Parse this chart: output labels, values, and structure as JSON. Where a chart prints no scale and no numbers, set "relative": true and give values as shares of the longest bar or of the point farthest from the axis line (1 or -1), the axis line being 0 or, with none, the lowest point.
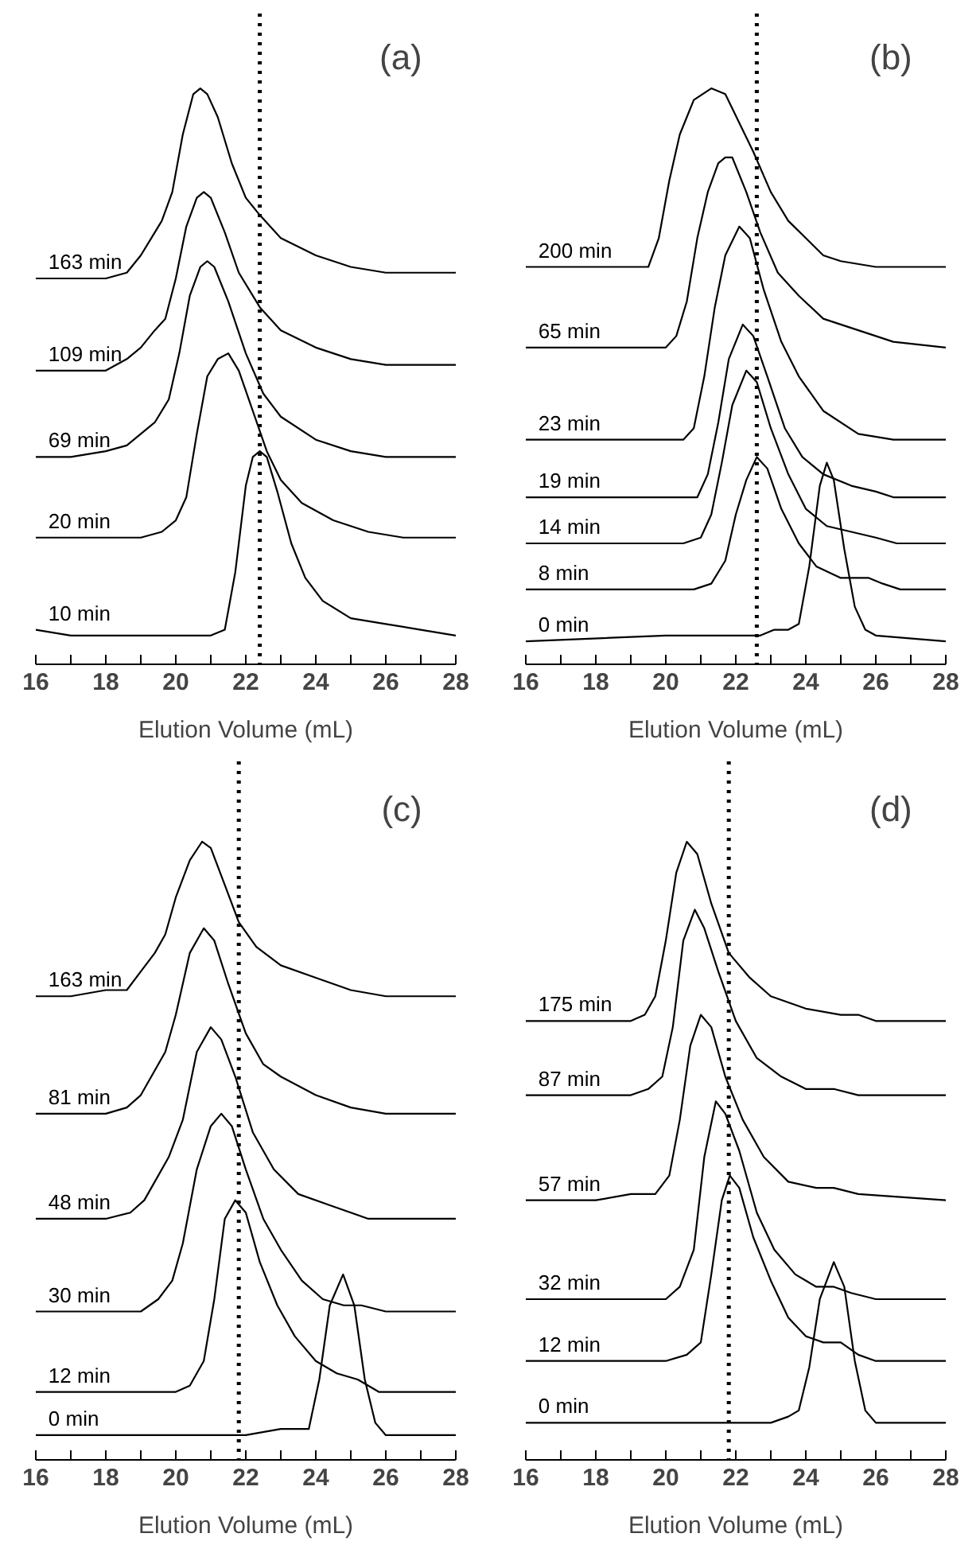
{
  "chart_data": [
    {
      "type": "line",
      "relative": true,
      "xlabel": "Elution Volume (mL)",
      "annotations": [
        "(a)"
      ],
      "xlim": [
        16,
        28
      ],
      "xticks": [
        16,
        {
          "value": 17,
          "label": null
        },
        18,
        {
          "value": 19,
          "label": null
        },
        20,
        {
          "value": 21,
          "label": null
        },
        22,
        {
          "value": 23,
          "label": null
        },
        24,
        {
          "value": 25,
          "label": null
        },
        26,
        {
          "value": 27,
          "label": null
        },
        28
      ],
      "grid": false,
      "marker": "none",
      "line_style": "solid",
      "ref_lines": [
        {
          "axis": "x",
          "value": 22.4,
          "color": "#000000",
          "line_style": "dotted"
        }
      ],
      "series": [
        {
          "name": "163 min",
          "color": "#000000",
          "x": [
            16,
            17,
            18,
            18.6,
            19,
            19.3,
            19.6,
            19.9,
            20.2,
            20.5,
            20.7,
            20.9,
            21.2,
            21.6,
            22,
            22.4,
            23,
            24,
            25,
            26,
            27,
            28
          ],
          "values": [
            0.67,
            0.67,
            0.67,
            0.68,
            0.71,
            0.74,
            0.77,
            0.82,
            0.92,
            0.99,
            1.0,
            0.99,
            0.95,
            0.87,
            0.81,
            0.78,
            0.74,
            0.71,
            0.69,
            0.68,
            0.68,
            0.68
          ]
        },
        {
          "name": "109 min",
          "color": "#000000",
          "x": [
            16,
            17,
            18,
            18.6,
            19,
            19.4,
            19.7,
            20,
            20.3,
            20.6,
            20.8,
            21,
            21.4,
            21.8,
            22.4,
            23,
            24,
            25,
            26,
            28
          ],
          "values": [
            0.51,
            0.51,
            0.51,
            0.53,
            0.55,
            0.58,
            0.6,
            0.67,
            0.76,
            0.81,
            0.82,
            0.81,
            0.75,
            0.68,
            0.62,
            0.58,
            0.55,
            0.53,
            0.52,
            0.52
          ]
        },
        {
          "name": "69 min",
          "color": "#000000",
          "x": [
            16,
            17,
            18,
            18.6,
            19,
            19.4,
            19.8,
            20.1,
            20.4,
            20.7,
            20.9,
            21.1,
            21.5,
            22,
            22.5,
            23,
            24,
            25,
            26,
            28
          ],
          "values": [
            0.36,
            0.36,
            0.37,
            0.38,
            0.4,
            0.42,
            0.46,
            0.54,
            0.64,
            0.69,
            0.7,
            0.69,
            0.63,
            0.54,
            0.47,
            0.43,
            0.39,
            0.37,
            0.36,
            0.36
          ]
        },
        {
          "name": "20 min",
          "color": "#000000",
          "x": [
            16,
            17,
            18,
            19,
            19.6,
            20,
            20.3,
            20.6,
            20.9,
            21.2,
            21.5,
            21.8,
            22.2,
            22.6,
            23,
            23.6,
            24.5,
            25.5,
            26.5,
            28
          ],
          "values": [
            0.22,
            0.22,
            0.22,
            0.22,
            0.23,
            0.25,
            0.29,
            0.4,
            0.5,
            0.53,
            0.54,
            0.51,
            0.44,
            0.37,
            0.32,
            0.28,
            0.25,
            0.23,
            0.22,
            0.22
          ]
        },
        {
          "name": "10 min",
          "color": "#000000",
          "x": [
            16,
            17,
            18,
            19,
            20,
            21,
            21.4,
            21.7,
            22,
            22.2,
            22.4,
            22.6,
            22.9,
            23.3,
            23.7,
            24.2,
            25,
            26,
            27,
            28
          ],
          "values": [
            0.06,
            0.05,
            0.05,
            0.05,
            0.05,
            0.05,
            0.06,
            0.16,
            0.31,
            0.36,
            0.37,
            0.36,
            0.3,
            0.21,
            0.15,
            0.11,
            0.08,
            0.07,
            0.06,
            0.05
          ]
        }
      ]
    },
    {
      "type": "line",
      "relative": true,
      "xlabel": "Elution Volume (mL)",
      "annotations": [
        "(b)"
      ],
      "xlim": [
        16,
        28
      ],
      "xticks": [
        16,
        {
          "value": 17,
          "label": null
        },
        18,
        {
          "value": 19,
          "label": null
        },
        20,
        {
          "value": 21,
          "label": null
        },
        22,
        {
          "value": 23,
          "label": null
        },
        24,
        {
          "value": 25,
          "label": null
        },
        26,
        {
          "value": 27,
          "label": null
        },
        28
      ],
      "grid": false,
      "marker": "none",
      "line_style": "solid",
      "ref_lines": [
        {
          "axis": "x",
          "value": 22.6,
          "color": "#000000",
          "line_style": "dotted"
        }
      ],
      "series": [
        {
          "name": "200 min",
          "color": "#000000",
          "x": [
            16,
            18,
            19.2,
            19.5,
            19.8,
            20.1,
            20.4,
            20.8,
            21.3,
            21.7,
            22.1,
            22.5,
            23,
            23.5,
            24,
            24.5,
            25,
            26,
            28
          ],
          "values": [
            0.69,
            0.69,
            0.69,
            0.69,
            0.74,
            0.84,
            0.92,
            0.98,
            1.0,
            0.99,
            0.94,
            0.89,
            0.82,
            0.77,
            0.74,
            0.71,
            0.7,
            0.69,
            0.69
          ]
        },
        {
          "name": "65 min",
          "color": "#000000",
          "x": [
            16,
            19,
            20,
            20.3,
            20.6,
            20.9,
            21.2,
            21.5,
            21.7,
            21.9,
            22.3,
            22.7,
            23.2,
            23.8,
            24.5,
            25.5,
            26.5,
            28
          ],
          "values": [
            0.55,
            0.55,
            0.55,
            0.57,
            0.63,
            0.74,
            0.82,
            0.87,
            0.88,
            0.88,
            0.82,
            0.75,
            0.68,
            0.64,
            0.6,
            0.58,
            0.56,
            0.55
          ]
        },
        {
          "name": "23 min",
          "color": "#000000",
          "x": [
            16,
            19,
            20,
            20.5,
            20.8,
            21.1,
            21.4,
            21.7,
            22.1,
            22.4,
            22.8,
            23.3,
            23.8,
            24.5,
            25.5,
            26.5,
            28
          ],
          "values": [
            0.39,
            0.39,
            0.39,
            0.39,
            0.41,
            0.5,
            0.62,
            0.71,
            0.76,
            0.74,
            0.65,
            0.56,
            0.5,
            0.44,
            0.4,
            0.39,
            0.39
          ]
        },
        {
          "name": "19 min",
          "color": "#000000",
          "x": [
            16,
            19,
            20.5,
            20.9,
            21.2,
            21.5,
            21.8,
            22.2,
            22.5,
            22.9,
            23.4,
            23.9,
            24.5,
            25.3,
            26,
            26.5,
            28
          ],
          "values": [
            0.29,
            0.29,
            0.29,
            0.29,
            0.33,
            0.42,
            0.53,
            0.59,
            0.57,
            0.5,
            0.41,
            0.36,
            0.33,
            0.31,
            0.3,
            0.29,
            0.29
          ]
        },
        {
          "name": "14 min",
          "color": "#000000",
          "x": [
            16,
            19,
            20.5,
            21,
            21.3,
            21.6,
            21.9,
            22.3,
            22.6,
            23,
            23.5,
            24,
            24.6,
            25.3,
            26,
            26.6,
            28
          ],
          "values": [
            0.21,
            0.21,
            0.21,
            0.22,
            0.26,
            0.35,
            0.45,
            0.51,
            0.49,
            0.41,
            0.33,
            0.27,
            0.24,
            0.23,
            0.22,
            0.21,
            0.21
          ]
        },
        {
          "name": "8 min",
          "color": "#000000",
          "x": [
            16,
            19,
            20.8,
            21.3,
            21.7,
            22,
            22.3,
            22.6,
            22.9,
            23.3,
            23.8,
            24.3,
            25,
            25.8,
            26.2,
            26.7,
            28
          ],
          "values": [
            0.13,
            0.13,
            0.13,
            0.14,
            0.18,
            0.26,
            0.32,
            0.36,
            0.34,
            0.27,
            0.21,
            0.17,
            0.15,
            0.15,
            0.14,
            0.13,
            0.13
          ]
        },
        {
          "name": "0 min",
          "color": "#000000",
          "x": [
            16,
            20,
            22,
            22.7,
            23.1,
            23.5,
            23.8,
            24.1,
            24.4,
            24.6,
            24.8,
            25.1,
            25.4,
            25.7,
            26,
            28
          ],
          "values": [
            0.04,
            0.05,
            0.05,
            0.05,
            0.06,
            0.06,
            0.07,
            0.17,
            0.31,
            0.35,
            0.32,
            0.2,
            0.1,
            0.06,
            0.05,
            0.04
          ]
        }
      ]
    },
    {
      "type": "line",
      "relative": true,
      "xlabel": "Elution Volume (mL)",
      "annotations": [
        "(c)"
      ],
      "xlim": [
        16,
        28
      ],
      "xticks": [
        16,
        {
          "value": 17,
          "label": null
        },
        18,
        {
          "value": 19,
          "label": null
        },
        20,
        {
          "value": 21,
          "label": null
        },
        22,
        {
          "value": 23,
          "label": null
        },
        24,
        {
          "value": 25,
          "label": null
        },
        26,
        {
          "value": 27,
          "label": null
        },
        28
      ],
      "grid": false,
      "marker": "none",
      "line_style": "solid",
      "ref_lines": [
        {
          "axis": "x",
          "value": 21.8,
          "color": "#000000",
          "line_style": "dotted"
        }
      ],
      "series": [
        {
          "name": "163 min",
          "color": "#000000",
          "x": [
            16,
            17,
            18,
            18.6,
            19,
            19.4,
            19.7,
            20,
            20.4,
            20.75,
            21,
            21.4,
            21.8,
            22.3,
            23,
            24,
            25,
            26,
            28
          ],
          "values": [
            0.75,
            0.75,
            0.76,
            0.76,
            0.79,
            0.82,
            0.85,
            0.91,
            0.97,
            1.0,
            0.99,
            0.93,
            0.87,
            0.83,
            0.8,
            0.78,
            0.76,
            0.75,
            0.75
          ]
        },
        {
          "name": "81 min",
          "color": "#000000",
          "x": [
            16,
            17,
            18,
            18.6,
            19,
            19.4,
            19.7,
            20,
            20.4,
            20.8,
            21.1,
            21.5,
            22,
            22.5,
            23,
            24,
            25,
            26,
            28
          ],
          "values": [
            0.56,
            0.56,
            0.56,
            0.57,
            0.59,
            0.63,
            0.66,
            0.72,
            0.82,
            0.86,
            0.84,
            0.77,
            0.69,
            0.64,
            0.62,
            0.59,
            0.57,
            0.56,
            0.56
          ]
        },
        {
          "name": "48 min",
          "color": "#000000",
          "x": [
            16,
            17,
            18,
            18.7,
            19.1,
            19.5,
            19.8,
            20.2,
            20.6,
            21,
            21.3,
            21.7,
            22.2,
            22.8,
            23.5,
            24.5,
            25.5,
            26.5,
            28
          ],
          "values": [
            0.39,
            0.39,
            0.39,
            0.4,
            0.42,
            0.46,
            0.49,
            0.55,
            0.66,
            0.7,
            0.68,
            0.62,
            0.53,
            0.47,
            0.43,
            0.41,
            0.39,
            0.39,
            0.39
          ]
        },
        {
          "name": "30 min",
          "color": "#000000",
          "x": [
            16,
            17,
            18,
            19,
            19.5,
            19.9,
            20.2,
            20.6,
            21,
            21.3,
            21.6,
            22,
            22.5,
            23,
            23.6,
            24.2,
            24.8,
            25.3,
            26,
            28
          ],
          "values": [
            0.24,
            0.24,
            0.24,
            0.24,
            0.26,
            0.29,
            0.35,
            0.47,
            0.54,
            0.56,
            0.54,
            0.47,
            0.39,
            0.34,
            0.29,
            0.26,
            0.25,
            0.25,
            0.24,
            0.24
          ]
        },
        {
          "name": "12 min",
          "color": "#000000",
          "x": [
            16,
            18,
            19,
            20,
            20.4,
            20.8,
            21.1,
            21.4,
            21.7,
            22,
            22.4,
            22.9,
            23.4,
            24,
            24.6,
            25.2,
            25.8,
            26.5,
            28
          ],
          "values": [
            0.11,
            0.11,
            0.11,
            0.11,
            0.12,
            0.16,
            0.26,
            0.39,
            0.42,
            0.4,
            0.32,
            0.25,
            0.2,
            0.16,
            0.14,
            0.13,
            0.11,
            0.11,
            0.11
          ]
        },
        {
          "name": "0  min",
          "color": "#000000",
          "x": [
            16,
            18,
            20,
            22,
            23,
            23.5,
            23.8,
            24.1,
            24.4,
            24.78,
            25.1,
            25.4,
            25.7,
            26,
            28
          ],
          "values": [
            0.04,
            0.04,
            0.04,
            0.04,
            0.05,
            0.05,
            0.05,
            0.13,
            0.25,
            0.3,
            0.25,
            0.13,
            0.06,
            0.04,
            0.04
          ]
        }
      ]
    },
    {
      "type": "line",
      "relative": true,
      "xlabel": "Elution Volume (mL)",
      "annotations": [
        "(d)"
      ],
      "xlim": [
        16,
        28
      ],
      "xticks": [
        16,
        {
          "value": 17,
          "label": null
        },
        18,
        {
          "value": 19,
          "label": null
        },
        20,
        {
          "value": 21,
          "label": null
        },
        22,
        {
          "value": 23,
          "label": null
        },
        24,
        {
          "value": 25,
          "label": null
        },
        26,
        {
          "value": 27,
          "label": null
        },
        28
      ],
      "grid": false,
      "marker": "none",
      "line_style": "solid",
      "ref_lines": [
        {
          "axis": "x",
          "value": 21.8,
          "color": "#000000",
          "line_style": "dotted"
        }
      ],
      "series": [
        {
          "name": "175 min",
          "color": "#000000",
          "x": [
            16,
            18,
            19,
            19.4,
            19.7,
            20,
            20.3,
            20.6,
            20.9,
            21.3,
            21.8,
            22.4,
            23,
            24,
            25,
            25.5,
            26,
            28
          ],
          "values": [
            0.71,
            0.71,
            0.71,
            0.72,
            0.75,
            0.84,
            0.95,
            1.0,
            0.98,
            0.9,
            0.82,
            0.78,
            0.75,
            0.73,
            0.72,
            0.72,
            0.71,
            0.71
          ]
        },
        {
          "name": "87 min",
          "color": "#000000",
          "x": [
            16,
            18,
            19,
            19.5,
            19.9,
            20.2,
            20.5,
            20.83,
            21.1,
            21.5,
            22,
            22.6,
            23.3,
            24,
            24.8,
            25.5,
            28
          ],
          "values": [
            0.59,
            0.59,
            0.59,
            0.6,
            0.62,
            0.7,
            0.84,
            0.89,
            0.86,
            0.79,
            0.71,
            0.65,
            0.62,
            0.6,
            0.6,
            0.59,
            0.59
          ]
        },
        {
          "name": "57 min",
          "color": "#000000",
          "x": [
            16,
            18,
            19,
            19.7,
            20.1,
            20.4,
            20.7,
            21,
            21.3,
            21.7,
            22.2,
            22.8,
            23.5,
            24.3,
            24.8,
            25.5,
            28
          ],
          "values": [
            0.42,
            0.42,
            0.43,
            0.43,
            0.46,
            0.55,
            0.67,
            0.72,
            0.7,
            0.62,
            0.55,
            0.49,
            0.45,
            0.44,
            0.44,
            0.43,
            0.42
          ]
        },
        {
          "name": "32 min",
          "color": "#000000",
          "x": [
            16,
            18,
            19,
            20,
            20.4,
            20.8,
            21.1,
            21.43,
            21.7,
            22.1,
            22.6,
            23.1,
            23.7,
            24.3,
            24.8,
            25.3,
            26,
            28
          ],
          "values": [
            0.26,
            0.26,
            0.26,
            0.26,
            0.28,
            0.34,
            0.49,
            0.58,
            0.56,
            0.5,
            0.4,
            0.34,
            0.3,
            0.28,
            0.28,
            0.27,
            0.26,
            0.26
          ]
        },
        {
          "name": "12 min",
          "color": "#000000",
          "x": [
            16,
            18,
            19,
            20,
            20.6,
            21,
            21.3,
            21.6,
            21.83,
            22.1,
            22.5,
            23,
            23.5,
            24,
            24.5,
            25,
            25.5,
            26,
            28
          ],
          "values": [
            0.16,
            0.16,
            0.16,
            0.16,
            0.17,
            0.19,
            0.3,
            0.42,
            0.46,
            0.44,
            0.36,
            0.29,
            0.23,
            0.2,
            0.19,
            0.19,
            0.17,
            0.16,
            0.16
          ]
        },
        {
          "name": "0  min",
          "color": "#000000",
          "x": [
            16,
            18,
            20,
            22,
            23,
            23.5,
            23.8,
            24.1,
            24.4,
            24.8,
            25.1,
            25.4,
            25.7,
            26,
            28
          ],
          "values": [
            0.06,
            0.06,
            0.06,
            0.06,
            0.06,
            0.07,
            0.08,
            0.15,
            0.26,
            0.32,
            0.28,
            0.16,
            0.08,
            0.06,
            0.06
          ]
        }
      ]
    }
  ]
}
